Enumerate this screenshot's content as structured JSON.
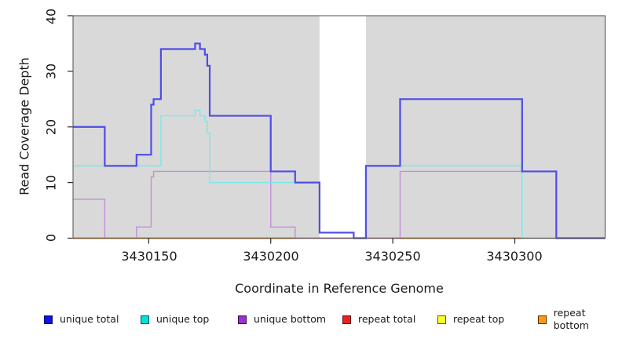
{
  "chart_data": {
    "type": "line",
    "subtype": "step-coverage",
    "title": "",
    "xlabel": "Coordinate in Reference Genome",
    "ylabel": "Read Coverage Depth",
    "xlim": [
      3430119,
      3430337
    ],
    "ylim": [
      0,
      40
    ],
    "x_ticks": [
      3430150,
      3430200,
      3430250,
      3430300
    ],
    "y_ticks": [
      0,
      10,
      20,
      30,
      40
    ],
    "grid": false,
    "legend_position": "bottom",
    "plot_background": "#ffffff",
    "shaded_regions": [
      {
        "from": 3430119,
        "to": 3430220,
        "color": "#d9d9d9"
      },
      {
        "from": 3430239,
        "to": 3430337,
        "color": "#d9d9d9"
      }
    ],
    "series": [
      {
        "name": "unique total",
        "color": "#4d4de8",
        "legend_color": "#1111ee",
        "width": 2.2,
        "steps": [
          [
            3430119,
            20
          ],
          [
            3430132,
            13
          ],
          [
            3430145,
            15
          ],
          [
            3430151,
            24
          ],
          [
            3430152,
            25
          ],
          [
            3430155,
            34
          ],
          [
            3430169,
            35
          ],
          [
            3430171,
            34
          ],
          [
            3430173,
            33
          ],
          [
            3430174,
            31
          ],
          [
            3430175,
            22
          ],
          [
            3430200,
            12
          ],
          [
            3430210,
            10
          ],
          [
            3430220,
            1
          ],
          [
            3430234,
            0
          ],
          [
            3430239,
            13
          ],
          [
            3430253,
            25
          ],
          [
            3430303,
            12
          ],
          [
            3430317,
            0
          ]
        ]
      },
      {
        "name": "unique top",
        "color": "#7de8e8",
        "legend_color": "#00e2e2",
        "width": 1.4,
        "steps": [
          [
            3430119,
            13
          ],
          [
            3430155,
            22
          ],
          [
            3430169,
            23
          ],
          [
            3430171,
            22
          ],
          [
            3430173,
            21
          ],
          [
            3430174,
            19
          ],
          [
            3430175,
            10
          ],
          [
            3430220,
            1
          ],
          [
            3430234,
            0
          ],
          [
            3430239,
            13
          ],
          [
            3430303,
            0
          ]
        ]
      },
      {
        "name": "unique bottom",
        "color": "#c38edb",
        "legend_color": "#9a32cd",
        "width": 1.4,
        "steps": [
          [
            3430119,
            7
          ],
          [
            3430132,
            0
          ],
          [
            3430145,
            2
          ],
          [
            3430151,
            11
          ],
          [
            3430152,
            12
          ],
          [
            3430200,
            2
          ],
          [
            3430210,
            0
          ],
          [
            3430253,
            12
          ],
          [
            3430317,
            0
          ]
        ]
      },
      {
        "name": "repeat total",
        "color": "#cd5f7d",
        "legend_color": "#ee2020",
        "width": 1.5,
        "steps": [
          [
            3430119,
            0
          ]
        ]
      },
      {
        "name": "repeat top",
        "color": "#f0e442",
        "legend_color": "#ffff2e",
        "width": 1.4,
        "steps": [
          [
            3430119,
            0
          ]
        ]
      },
      {
        "name": "repeat bottom",
        "color": "#ff9800",
        "legend_color": "#ff9912",
        "width": 2.2,
        "steps": [
          [
            3430119,
            0
          ]
        ]
      }
    ],
    "zero_overlays": [
      {
        "color": "#ff9800",
        "from": 3430119,
        "to": 3430210,
        "width": 2.2
      },
      {
        "color": "#ff9800",
        "from": 3430253,
        "to": 3430303,
        "width": 2.2
      },
      {
        "color": "#9cd69c",
        "from": 3430303,
        "to": 3430317,
        "width": 1.6
      }
    ]
  }
}
